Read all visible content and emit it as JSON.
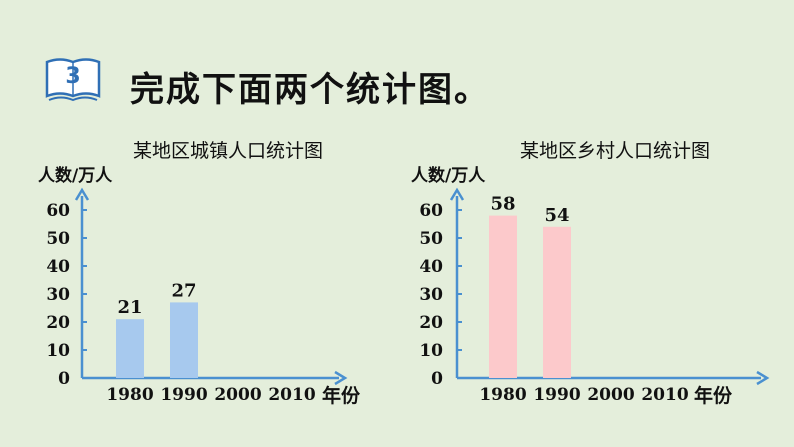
{
  "problem": {
    "number": "3",
    "instruction": "完成下面两个统计图。"
  },
  "colors": {
    "background": "#e4eedb",
    "axis": "#4a90d0",
    "badge": "#2f6fb5"
  },
  "chart_data": [
    {
      "type": "bar",
      "title": "某地区城镇人口统计图",
      "ylabel": "人数/万人",
      "xlabel": "年份",
      "categories": [
        "1980",
        "1990",
        "2000",
        "2010"
      ],
      "values": [
        21,
        27,
        null,
        null
      ],
      "ylim": [
        0,
        60
      ],
      "yticks": [
        "0",
        "10",
        "20",
        "30",
        "40",
        "50",
        "60"
      ],
      "bar_color": "#a7c9ee",
      "grid": false
    },
    {
      "type": "bar",
      "title": "某地区乡村人口统计图",
      "ylabel": "人数/万人",
      "xlabel": "年份",
      "categories": [
        "1980",
        "1990",
        "2000",
        "2010"
      ],
      "values": [
        58,
        54,
        null,
        null
      ],
      "ylim": [
        0,
        60
      ],
      "yticks": [
        "0",
        "10",
        "20",
        "30",
        "40",
        "50",
        "60"
      ],
      "bar_color": "#fcc9cb",
      "grid": false
    }
  ]
}
